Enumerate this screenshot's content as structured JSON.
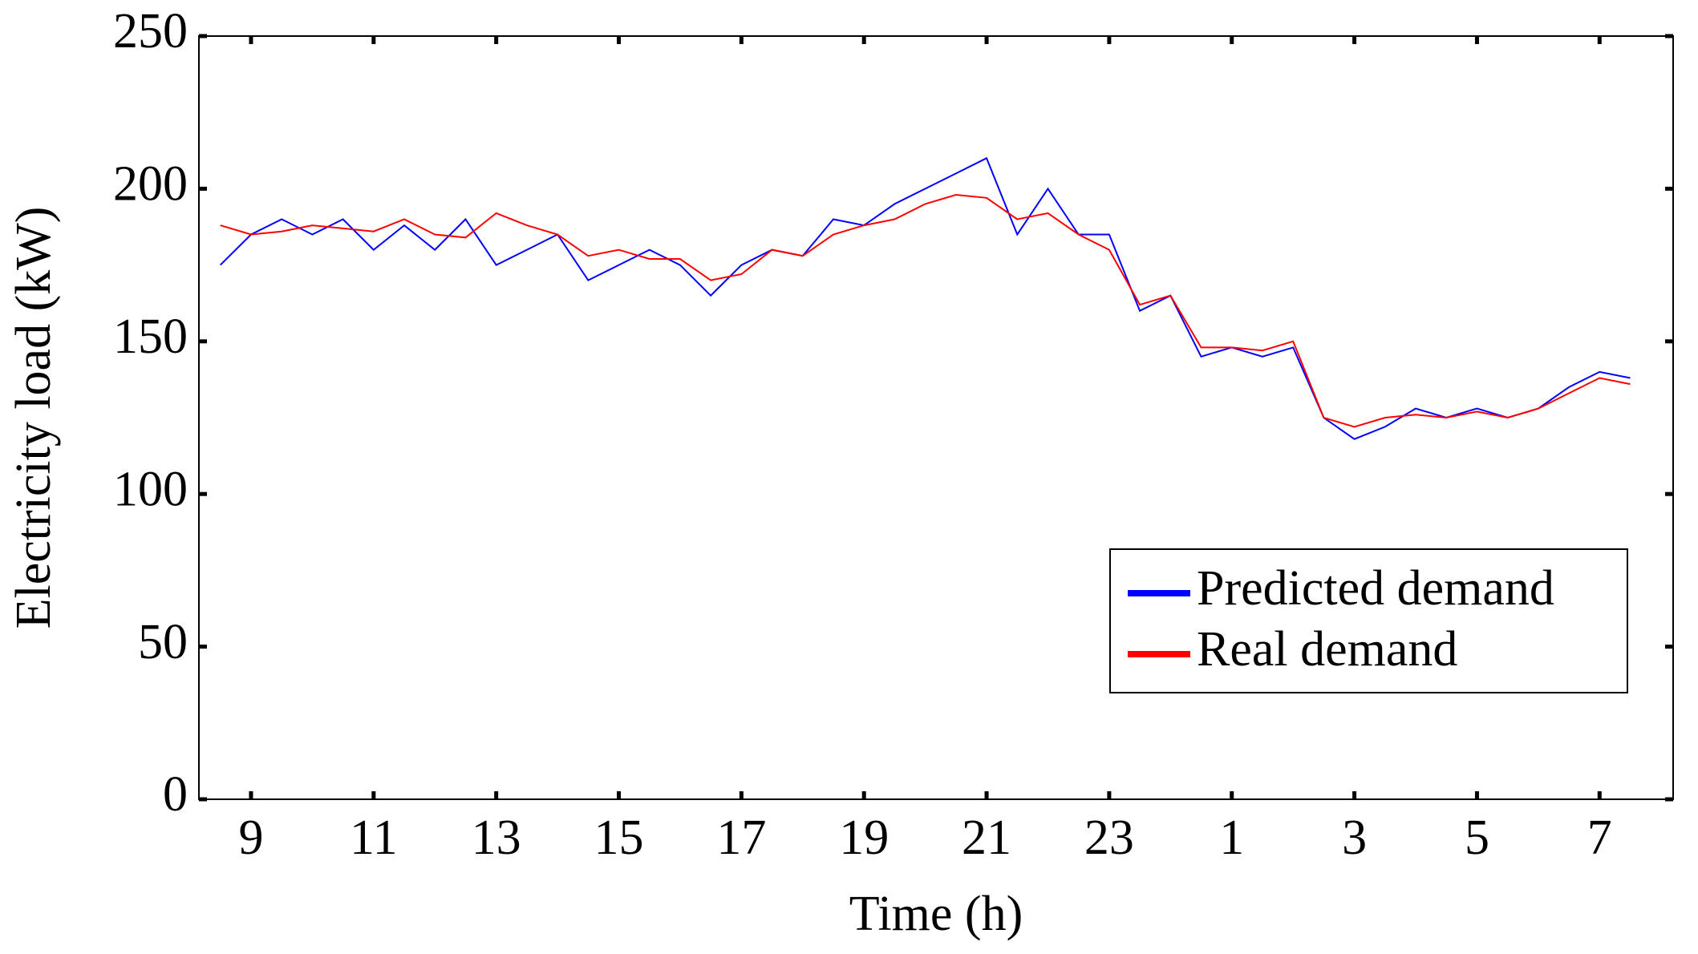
{
  "chart_data": {
    "type": "line",
    "xlabel": "Time (h)",
    "ylabel": "Electricity load (kW)",
    "x": [
      8.5,
      9,
      9.5,
      10,
      10.5,
      11,
      11.5,
      12,
      12.5,
      13,
      13.5,
      14,
      14.5,
      15,
      15.5,
      16,
      16.5,
      17,
      17.5,
      18,
      18.5,
      19,
      19.5,
      20,
      20.5,
      21,
      21.5,
      22,
      22.5,
      23,
      23.5,
      24,
      24.5,
      25,
      25.5,
      26,
      26.5,
      27,
      27.5,
      28,
      28.5,
      29,
      29.5,
      30,
      30.5,
      31,
      31.5
    ],
    "series": [
      {
        "name": "Predicted demand",
        "color": "#0000ff",
        "values": [
          175,
          185,
          190,
          185,
          190,
          180,
          188,
          180,
          190,
          175,
          180,
          185,
          170,
          175,
          180,
          175,
          165,
          175,
          180,
          178,
          190,
          188,
          195,
          200,
          205,
          210,
          185,
          200,
          185,
          185,
          160,
          165,
          145,
          148,
          145,
          148,
          125,
          118,
          122,
          128,
          125,
          128,
          125,
          128,
          135,
          140,
          138
        ]
      },
      {
        "name": "Real demand",
        "color": "#ff0000",
        "values": [
          188,
          185,
          186,
          188,
          187,
          186,
          190,
          185,
          184,
          192,
          188,
          185,
          178,
          180,
          177,
          177,
          170,
          172,
          180,
          178,
          185,
          188,
          190,
          195,
          198,
          197,
          190,
          192,
          185,
          180,
          162,
          165,
          148,
          148,
          147,
          150,
          125,
          122,
          125,
          126,
          125,
          127,
          125,
          128,
          133,
          138,
          136
        ]
      }
    ],
    "xlim": [
      8.15,
      32.2
    ],
    "xticks": [
      9,
      11,
      13,
      15,
      17,
      19,
      21,
      23,
      {
        "value": 25,
        "label": "1"
      },
      {
        "value": 27,
        "label": "3"
      },
      {
        "value": 29,
        "label": "5"
      },
      {
        "value": 31,
        "label": "7"
      }
    ],
    "ylim": [
      0,
      250
    ],
    "yticks": [
      0,
      50,
      100,
      150,
      200,
      250
    ],
    "legend": "lower right"
  }
}
